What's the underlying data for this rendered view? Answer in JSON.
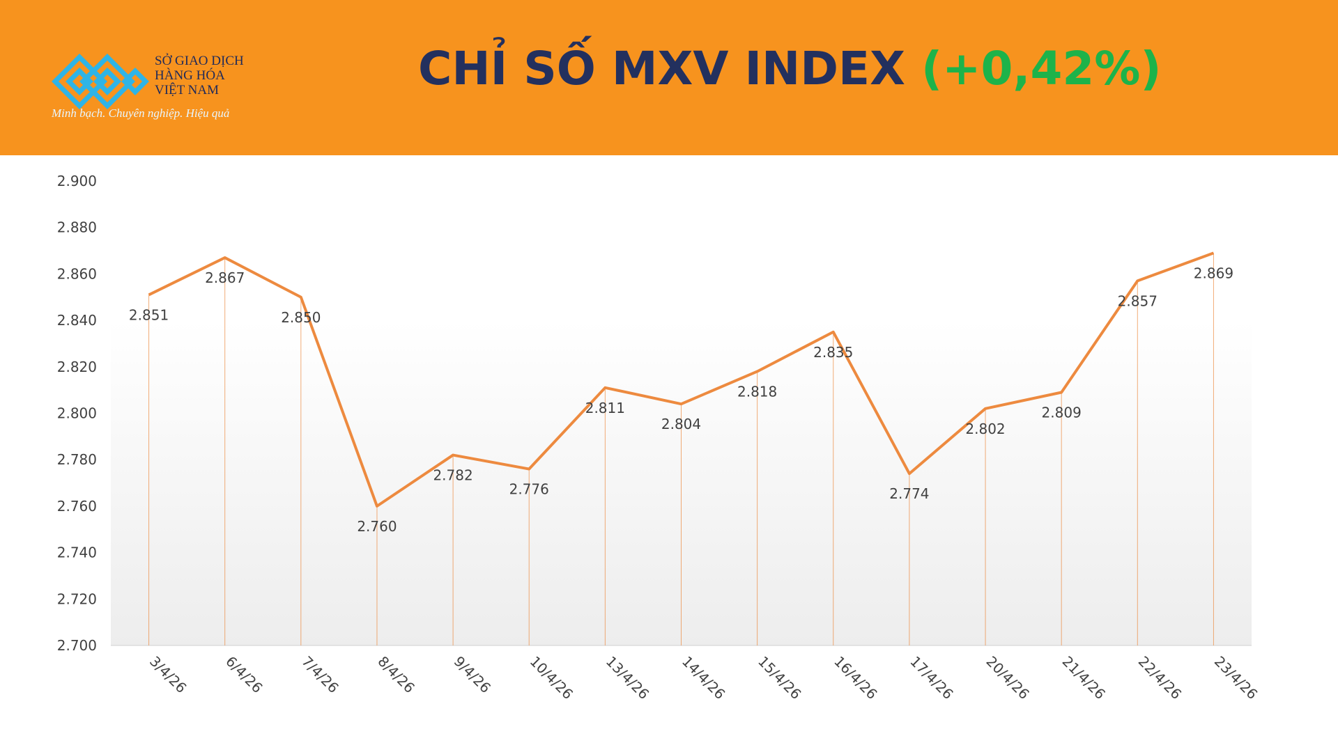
{
  "header": {
    "logo_lines": [
      "SỞ GIAO DỊCH",
      "HÀNG HÓA",
      "VIỆT NAM"
    ],
    "slogan": "Minh bạch. Chuyên nghiệp. Hiệu quả",
    "title": "CHỈ SỐ MXV INDEX",
    "title_change": "(+0,42%)"
  },
  "chart_data": {
    "type": "line",
    "categories": [
      "3/4/26",
      "6/4/26",
      "7/4/26",
      "8/4/26",
      "9/4/26",
      "10/4/26",
      "13/4/26",
      "14/4/26",
      "15/4/26",
      "16/4/26",
      "17/4/26",
      "20/4/26",
      "21/4/26",
      "22/4/26",
      "23/4/26"
    ],
    "values": [
      2851,
      2867,
      2850,
      2760,
      2782,
      2776,
      2811,
      2804,
      2818,
      2835,
      2774,
      2802,
      2809,
      2857,
      2869
    ],
    "value_labels": [
      "2.851",
      "2.867",
      "2.850",
      "2.760",
      "2.782",
      "2.776",
      "2.811",
      "2.804",
      "2.818",
      "2.835",
      "2.774",
      "2.802",
      "2.809",
      "2.857",
      "2.869"
    ],
    "color": "#ed8a3f",
    "ylim": [
      2700,
      2900
    ],
    "yticks": [
      {
        "value": 2700,
        "label": "2.700"
      },
      {
        "value": 2720,
        "label": "2.720"
      },
      {
        "value": 2740,
        "label": "2.740"
      },
      {
        "value": 2760,
        "label": "2.760"
      },
      {
        "value": 2780,
        "label": "2.780"
      },
      {
        "value": 2800,
        "label": "2.800"
      },
      {
        "value": 2820,
        "label": "2.820"
      },
      {
        "value": 2840,
        "label": "2.840"
      },
      {
        "value": 2860,
        "label": "2.860"
      },
      {
        "value": 2880,
        "label": "2.880"
      },
      {
        "value": 2900,
        "label": "2.900"
      }
    ],
    "drop_lines": true
  }
}
